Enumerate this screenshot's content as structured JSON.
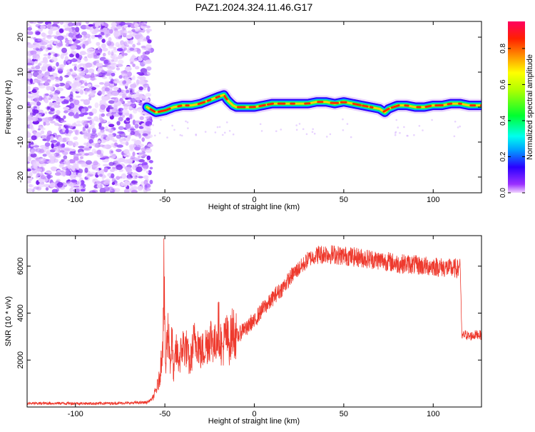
{
  "title": "PAZ1.2024.324.11.46.G17",
  "chart_data": [
    {
      "type": "heatmap",
      "xlabel": "Height of straight line (km)",
      "ylabel": "Frequency (Hz)",
      "xlim": [
        -127,
        127
      ],
      "ylim": [
        -24.5,
        24.5
      ],
      "xticks": [
        -100,
        -50,
        0,
        50,
        100
      ],
      "yticks": [
        -20,
        -10,
        0,
        10,
        20
      ],
      "colorbar": {
        "label": "Normalized spectral amplitude",
        "range": [
          0,
          0.95
        ],
        "ticks": [
          0.0,
          0.2,
          0.4,
          0.6,
          0.8
        ]
      },
      "signal_ridge": {
        "x": [
          -60,
          -55,
          -50,
          -45,
          -40,
          -35,
          -30,
          -25,
          -20,
          -17,
          -15,
          -12,
          -10,
          -5,
          0,
          5,
          10,
          15,
          20,
          25,
          30,
          35,
          40,
          45,
          50,
          55,
          60,
          65,
          70,
          73,
          75,
          80,
          85,
          90,
          95,
          100,
          105,
          110,
          115,
          120,
          127
        ],
        "frequency": [
          0.0,
          -1.5,
          -1.0,
          0.0,
          0.5,
          0.5,
          1.0,
          2.0,
          3.0,
          3.5,
          2.0,
          0.5,
          0.0,
          0.0,
          0.0,
          0.5,
          1.0,
          1.0,
          1.0,
          1.0,
          1.0,
          1.5,
          1.5,
          1.0,
          1.5,
          1.0,
          0.5,
          0.0,
          -0.5,
          -1.5,
          -0.5,
          0.5,
          0.5,
          0.0,
          0.0,
          0.5,
          0.5,
          1.0,
          1.0,
          0.5,
          0.5
        ]
      },
      "noise_region_xlim": [
        -127,
        -60
      ]
    },
    {
      "type": "line",
      "xlabel": "Height of straight line (km)",
      "ylabel": "SNR (10 * v/v)",
      "xlim": [
        -127,
        127
      ],
      "ylim": [
        0,
        7300
      ],
      "xticks": [
        -100,
        -50,
        0,
        50,
        100
      ],
      "yticks": [
        2000,
        4000,
        6000
      ],
      "series": [
        {
          "color": "#ee3a2e",
          "x": [
            -127,
            -110,
            -90,
            -70,
            -60,
            -57,
            -55,
            -53,
            -52,
            -51,
            -50.5,
            -50,
            -49.5,
            -49,
            -48,
            -47,
            -46,
            -45,
            -44,
            -42,
            -40,
            -38,
            -36,
            -34,
            -32,
            -30,
            -28,
            -26,
            -24,
            -22,
            -20,
            -18,
            -16,
            -14,
            -12,
            -10,
            -8,
            -6,
            -4,
            -2,
            0,
            2,
            4,
            6,
            8,
            10,
            12,
            15,
            18,
            20,
            22,
            25,
            28,
            30,
            33,
            35,
            38,
            40,
            42,
            45,
            48,
            50,
            55,
            60,
            65,
            70,
            75,
            80,
            85,
            90,
            95,
            100,
            105,
            110,
            113,
            114,
            114.5,
            115,
            116,
            118,
            120,
            125,
            127
          ],
          "values": [
            150,
            160,
            150,
            170,
            200,
            350,
            700,
            1200,
            2000,
            3200,
            5800,
            3000,
            1500,
            2600,
            3400,
            1800,
            2900,
            1300,
            2400,
            2000,
            2600,
            2500,
            1800,
            2700,
            2900,
            2300,
            2500,
            2800,
            3000,
            2600,
            3500,
            2400,
            3100,
            2700,
            3300,
            3000,
            3100,
            3400,
            3300,
            3600,
            3600,
            3900,
            4100,
            4300,
            4400,
            4600,
            4800,
            5000,
            5300,
            5500,
            5700,
            5900,
            6100,
            6300,
            6400,
            6500,
            6500,
            6550,
            6500,
            6500,
            6450,
            6450,
            6400,
            6350,
            6300,
            6250,
            6200,
            6100,
            6100,
            6050,
            6000,
            6000,
            5950,
            5900,
            5900,
            5850,
            6000,
            6300,
            3000,
            3100,
            3000,
            3100,
            3050
          ]
        }
      ]
    }
  ]
}
